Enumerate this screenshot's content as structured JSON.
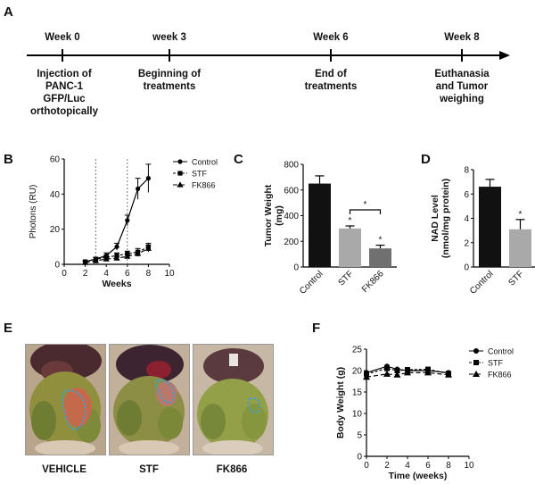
{
  "panels": {
    "a": "A",
    "b": "B",
    "c": "C",
    "d": "D",
    "e": "E",
    "f": "F"
  },
  "timeline": {
    "events": [
      {
        "label": "Week 0",
        "lines": [
          "Injection of",
          "PANC-1",
          "GFP/Luc",
          "orthotopically"
        ]
      },
      {
        "label": "week 3",
        "lines": [
          "Beginning of",
          "treatments"
        ]
      },
      {
        "label": "Week 6",
        "lines": [
          "End of",
          "treatments"
        ]
      },
      {
        "label": "Week 8",
        "lines": [
          "Euthanasia",
          "and Tumor",
          "weighing"
        ]
      }
    ]
  },
  "photos": {
    "captions": [
      "VEHICLE",
      "STF",
      "FK866"
    ]
  },
  "chart_data": [
    {
      "id": "B",
      "type": "line",
      "ylabel": "Photons (RU)",
      "xlabel": "Weeks",
      "xlim": [
        0,
        10
      ],
      "ylim": [
        0,
        60
      ],
      "xticks": [
        "0",
        "2",
        "4",
        "6",
        "8",
        "10"
      ],
      "yticks": [
        "0",
        "20",
        "40",
        "60"
      ],
      "vlines": [
        3,
        6
      ],
      "series": [
        {
          "name": "Control",
          "marker": "circle",
          "x": [
            2,
            3,
            4,
            5,
            6,
            7,
            8
          ],
          "y": [
            1.5,
            3,
            5,
            10,
            25,
            43,
            49
          ],
          "err": [
            0.5,
            1,
            1.5,
            2,
            3,
            6,
            8
          ]
        },
        {
          "name": "STF",
          "marker": "square",
          "x": [
            2,
            3,
            4,
            5,
            6,
            7,
            8
          ],
          "y": [
            1.5,
            3,
            4,
            5,
            6,
            7,
            10
          ],
          "err": [
            0.5,
            0.8,
            1,
            1.5,
            1.5,
            2,
            2
          ]
        },
        {
          "name": "FK866",
          "marker": "triangle",
          "x": [
            2,
            3,
            4,
            5,
            6,
            7,
            8
          ],
          "y": [
            1,
            2,
            3,
            3.5,
            4.5,
            6,
            9
          ],
          "err": [
            0.5,
            0.6,
            0.8,
            1,
            1,
            1.5,
            2
          ]
        }
      ]
    },
    {
      "id": "C",
      "type": "bar",
      "ylabel_lines": [
        "Tumor Weight",
        "(mg)"
      ],
      "ylim": [
        0,
        800
      ],
      "yticks": [
        "0",
        "200",
        "400",
        "600",
        "800"
      ],
      "categories": [
        "Control",
        "STF",
        "FK866"
      ],
      "values": [
        650,
        300,
        145
      ],
      "err": [
        60,
        20,
        25
      ],
      "colors": [
        "#111111",
        "#a9a9a9",
        "#707070"
      ],
      "sig": [
        "",
        "*",
        "*"
      ],
      "bracket": {
        "from": "STF",
        "to": "FK866",
        "label": "*"
      }
    },
    {
      "id": "D",
      "type": "bar",
      "ylabel_lines": [
        "NAD Level",
        "(nmol/mg protein)"
      ],
      "ylim": [
        0,
        8
      ],
      "yticks": [
        "0",
        "2",
        "4",
        "6",
        "8"
      ],
      "categories": [
        "Control",
        "STF"
      ],
      "values": [
        6.6,
        3.1
      ],
      "err": [
        0.6,
        0.8
      ],
      "colors": [
        "#111111",
        "#a9a9a9"
      ],
      "sig": [
        "",
        "*"
      ]
    },
    {
      "id": "F",
      "type": "line",
      "ylabel": "Body Weight (g)",
      "xlabel": "Time  (weeks)",
      "xlim": [
        0,
        10
      ],
      "ylim": [
        0,
        25
      ],
      "xticks": [
        "0",
        "2",
        "4",
        "6",
        "8",
        "10"
      ],
      "yticks": [
        "0",
        "5",
        "10",
        "15",
        "20",
        "25"
      ],
      "series": [
        {
          "name": "Control",
          "marker": "circle",
          "x": [
            0,
            2,
            3,
            4,
            6,
            8
          ],
          "y": [
            19.5,
            21,
            20.3,
            20,
            20,
            19.5
          ]
        },
        {
          "name": "STF",
          "marker": "square",
          "x": [
            0,
            2,
            3,
            4,
            6,
            8
          ],
          "y": [
            19.2,
            20.5,
            20,
            20.2,
            20.3,
            19.3
          ]
        },
        {
          "name": "FK866",
          "marker": "triangle",
          "x": [
            0,
            2,
            3,
            4,
            6,
            8
          ],
          "y": [
            18.5,
            19.2,
            19,
            19.5,
            19.5,
            19
          ]
        }
      ]
    }
  ]
}
